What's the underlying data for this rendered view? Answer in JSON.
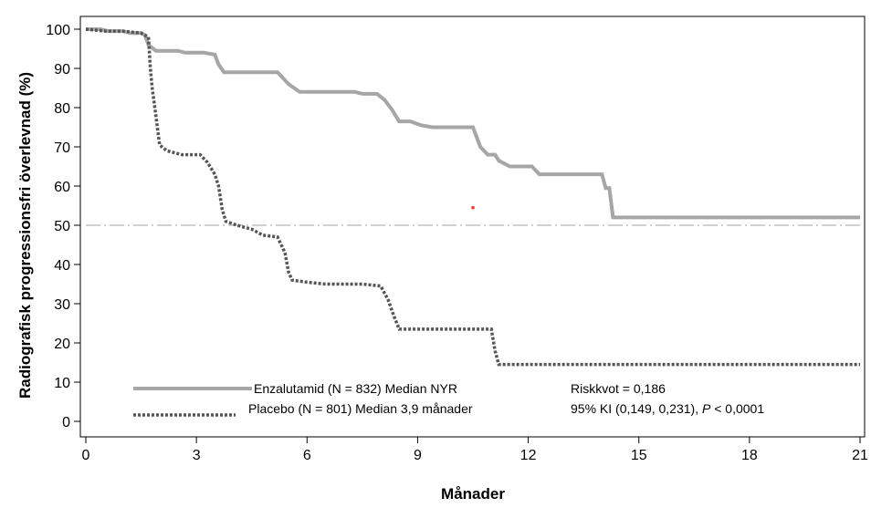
{
  "chart_data": {
    "type": "line",
    "title": "",
    "xlabel": "Månader",
    "ylabel": "Radiografisk progressionsfri överlevnad (%)",
    "xlim": [
      0,
      21
    ],
    "ylim": [
      0,
      100
    ],
    "xticks": [
      0,
      3,
      6,
      9,
      12,
      15,
      18,
      21
    ],
    "yticks": [
      0,
      10,
      20,
      30,
      40,
      50,
      60,
      70,
      80,
      90,
      100
    ],
    "grid": false,
    "reference_line": {
      "y": 50,
      "style": "dash-dot"
    },
    "legend_placement": "bottom-center",
    "series": [
      {
        "name": "Enzalutamid (N = 832) Median NYR",
        "style": "solid",
        "color": "#a6a6a6",
        "points": [
          [
            0,
            100
          ],
          [
            0.4,
            100
          ],
          [
            0.6,
            99.5
          ],
          [
            1.0,
            99.5
          ],
          [
            1.2,
            99
          ],
          [
            1.5,
            99
          ],
          [
            1.6,
            98.5
          ],
          [
            1.7,
            96
          ],
          [
            1.9,
            94.5
          ],
          [
            2.5,
            94.5
          ],
          [
            2.7,
            94
          ],
          [
            3.2,
            94
          ],
          [
            3.5,
            93.5
          ],
          [
            3.6,
            91
          ],
          [
            3.75,
            89
          ],
          [
            5.2,
            89
          ],
          [
            5.5,
            86
          ],
          [
            5.8,
            84
          ],
          [
            7.3,
            84
          ],
          [
            7.5,
            83.5
          ],
          [
            7.9,
            83.5
          ],
          [
            8.1,
            82
          ],
          [
            8.3,
            79.5
          ],
          [
            8.5,
            76.5
          ],
          [
            8.8,
            76.5
          ],
          [
            9.1,
            75.5
          ],
          [
            9.4,
            75
          ],
          [
            10.2,
            75
          ],
          [
            10.5,
            75
          ],
          [
            10.7,
            70
          ],
          [
            10.9,
            68
          ],
          [
            11.1,
            68
          ],
          [
            11.2,
            66.5
          ],
          [
            11.5,
            65
          ],
          [
            12.1,
            65
          ],
          [
            12.3,
            63
          ],
          [
            14.0,
            63
          ],
          [
            14.1,
            59.5
          ],
          [
            14.2,
            59.5
          ],
          [
            14.3,
            52
          ],
          [
            21.0,
            52
          ]
        ]
      },
      {
        "name": "Placebo (N = 801)  Median 3,9 månader",
        "style": "dotted",
        "color": "#555555",
        "points": [
          [
            0,
            100
          ],
          [
            0.5,
            99.5
          ],
          [
            1.0,
            99.5
          ],
          [
            1.5,
            99
          ],
          [
            1.7,
            98
          ],
          [
            1.75,
            90
          ],
          [
            1.8,
            85
          ],
          [
            1.9,
            78
          ],
          [
            2.0,
            70.5
          ],
          [
            2.2,
            69
          ],
          [
            2.6,
            68
          ],
          [
            3.1,
            68
          ],
          [
            3.3,
            66
          ],
          [
            3.5,
            63
          ],
          [
            3.6,
            60
          ],
          [
            3.7,
            54
          ],
          [
            3.8,
            51
          ],
          [
            4.1,
            50
          ],
          [
            4.5,
            49
          ],
          [
            4.8,
            47.5
          ],
          [
            5.2,
            47
          ],
          [
            5.4,
            43
          ],
          [
            5.5,
            38
          ],
          [
            5.6,
            36
          ],
          [
            6.0,
            35.5
          ],
          [
            6.5,
            35
          ],
          [
            7.5,
            35
          ],
          [
            8.0,
            34.5
          ],
          [
            8.2,
            31
          ],
          [
            8.35,
            27
          ],
          [
            8.5,
            23.5
          ],
          [
            11.0,
            23.5
          ],
          [
            11.1,
            18
          ],
          [
            11.2,
            14.5
          ],
          [
            21.0,
            14.5
          ]
        ]
      }
    ],
    "annotations": [
      {
        "text": "Riskkvot = 0,186"
      },
      {
        "text": "95% KI (0,149, 0,231), ",
        "italic_suffix": "P",
        "suffix": " < 0,0001"
      }
    ],
    "marker": {
      "x": 10.5,
      "y": 54.5,
      "color": "#ff3333"
    }
  }
}
